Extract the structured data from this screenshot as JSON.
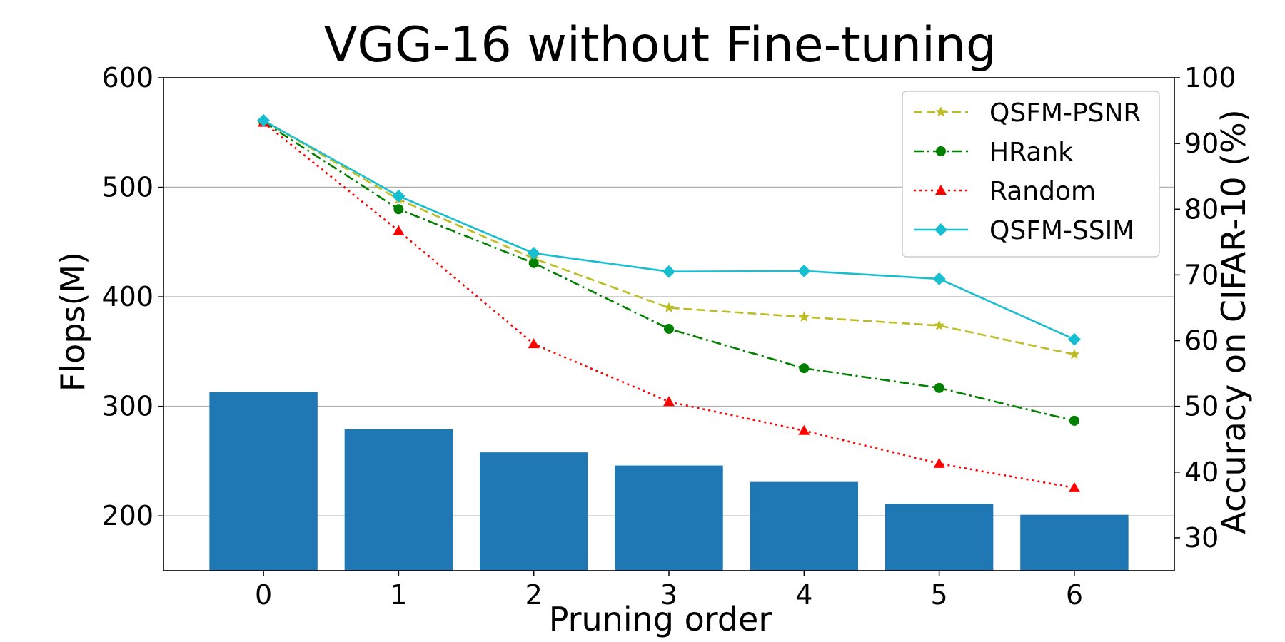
{
  "chart_data": {
    "type": "bar",
    "title": "VGG-16 without Fine-tuning",
    "xlabel": "Pruning order",
    "ylabel_left": "Flops(M)",
    "ylabel_right": "Accuracy on CIFAR-10 (%)",
    "categories": [
      "0",
      "1",
      "2",
      "3",
      "4",
      "5",
      "6"
    ],
    "x": [
      0,
      1,
      2,
      3,
      4,
      5,
      6
    ],
    "ylim_left": [
      150,
      600
    ],
    "yticks_left": [
      200,
      300,
      400,
      500,
      600
    ],
    "ylim_right": [
      25,
      100
    ],
    "yticks_right": [
      30,
      40,
      50,
      60,
      70,
      80,
      90,
      100
    ],
    "grid": "horizontal (left axis)",
    "legend_position": "top-right",
    "bars": {
      "axis": "left",
      "color": "#1f77b4",
      "values": [
        313,
        279,
        258,
        246,
        231,
        211,
        201
      ]
    },
    "series": [
      {
        "name": "QSFM-PSNR",
        "axis": "right",
        "color": "#bcbd22",
        "line_style": "dashed",
        "marker": "star",
        "values": [
          93.5,
          81.5,
          72.5,
          65.0,
          63.6,
          62.3,
          57.9
        ]
      },
      {
        "name": "HRank",
        "axis": "right",
        "color": "#008000",
        "line_style": "dashdot",
        "marker": "circle",
        "values": [
          93.3,
          80.0,
          71.8,
          61.8,
          55.8,
          52.8,
          47.8
        ]
      },
      {
        "name": "Random",
        "axis": "right",
        "color": "#ff0000",
        "line_style": "dotted",
        "marker": "triangle",
        "values": [
          93.2,
          76.7,
          59.5,
          50.7,
          46.3,
          41.3,
          37.6
        ]
      },
      {
        "name": "QSFM-SSIM",
        "axis": "right",
        "color": "#17becf",
        "line_style": "solid",
        "marker": "diamond",
        "values": [
          93.5,
          82.0,
          73.3,
          70.5,
          70.6,
          69.4,
          60.2
        ]
      }
    ]
  }
}
